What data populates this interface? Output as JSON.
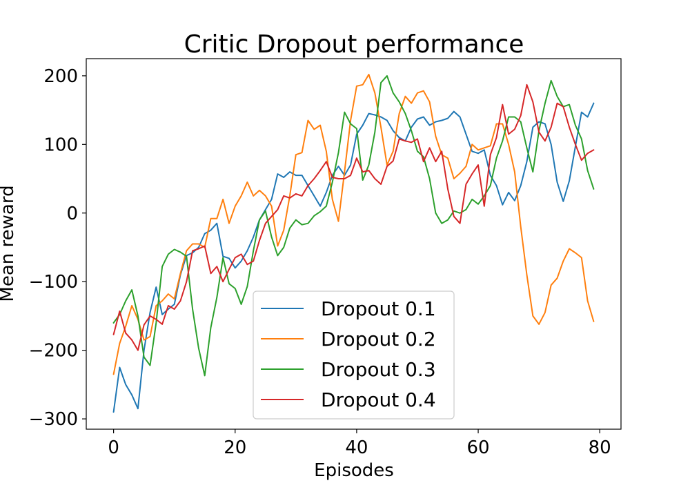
{
  "chart_data": {
    "type": "line",
    "title": "Critic Dropout performance",
    "xlabel": "Episodes",
    "ylabel": "Mean reward",
    "xlim": [
      -4.5,
      83.5
    ],
    "ylim": [
      -315,
      225
    ],
    "xticks": [
      0,
      20,
      40,
      60,
      80
    ],
    "xtick_labels": [
      "0",
      "20",
      "40",
      "60",
      "80"
    ],
    "yticks": [
      -300,
      -200,
      -100,
      0,
      100,
      200
    ],
    "ytick_labels": [
      "−300",
      "−200",
      "−100",
      "0",
      "100",
      "200"
    ],
    "grid": false,
    "legend_position": "bottom-center",
    "series": [
      {
        "name": "Dropout 0.1",
        "color": "#1f77b4",
        "values": [
          -290,
          -225,
          -250,
          -265,
          -285,
          -200,
          -145,
          -108,
          -148,
          -140,
          -133,
          -90,
          -62,
          -58,
          -50,
          -30,
          -25,
          -15,
          -63,
          -66,
          -80,
          -70,
          -55,
          -35,
          -10,
          5,
          20,
          57,
          52,
          60,
          55,
          55,
          40,
          25,
          10,
          30,
          55,
          68,
          55,
          70,
          115,
          128,
          145,
          143,
          140,
          135,
          120,
          110,
          105,
          125,
          137,
          140,
          128,
          133,
          135,
          138,
          148,
          140,
          115,
          90,
          87,
          92,
          55,
          40,
          12,
          30,
          18,
          40,
          75,
          125,
          133,
          130,
          100,
          45,
          17,
          47,
          97,
          147,
          140,
          160
        ]
      },
      {
        "name": "Dropout 0.2",
        "color": "#ff7f0e",
        "values": [
          -235,
          -190,
          -165,
          -135,
          -155,
          -185,
          -180,
          -135,
          -128,
          -118,
          -125,
          -88,
          -55,
          -45,
          -45,
          -50,
          -8,
          -8,
          20,
          -15,
          10,
          25,
          45,
          25,
          33,
          25,
          10,
          -48,
          -25,
          25,
          85,
          88,
          135,
          122,
          128,
          90,
          20,
          -12,
          60,
          135,
          185,
          187,
          202,
          175,
          125,
          70,
          90,
          145,
          170,
          160,
          175,
          178,
          162,
          112,
          85,
          80,
          50,
          58,
          68,
          100,
          92,
          95,
          98,
          130,
          130,
          100,
          60,
          -20,
          -90,
          -150,
          -162,
          -145,
          -105,
          -95,
          -70,
          -52,
          -58,
          -65,
          -128,
          -158
        ]
      },
      {
        "name": "Dropout 0.3",
        "color": "#2ca02c",
        "values": [
          -160,
          -148,
          -128,
          -112,
          -150,
          -210,
          -222,
          -160,
          -78,
          -60,
          -53,
          -57,
          -63,
          -140,
          -197,
          -237,
          -167,
          -123,
          -65,
          -103,
          -110,
          -133,
          -107,
          -55,
          -10,
          3,
          -35,
          -62,
          -50,
          -22,
          -10,
          -17,
          -15,
          -4,
          2,
          10,
          45,
          88,
          147,
          130,
          123,
          48,
          70,
          118,
          190,
          200,
          175,
          162,
          145,
          120,
          90,
          82,
          50,
          0,
          -15,
          -10,
          3,
          0,
          5,
          20,
          13,
          25,
          40,
          80,
          105,
          140,
          140,
          133,
          95,
          60,
          120,
          160,
          193,
          170,
          155,
          158,
          128,
          108,
          62,
          35
        ]
      },
      {
        "name": "Dropout 0.4",
        "color": "#d62728",
        "values": [
          -177,
          -143,
          -175,
          -185,
          -200,
          -163,
          -150,
          -155,
          -162,
          -135,
          -140,
          -128,
          -100,
          -55,
          -52,
          -48,
          -88,
          -78,
          -100,
          -82,
          -65,
          -60,
          -75,
          -70,
          -40,
          -15,
          -5,
          5,
          25,
          22,
          28,
          25,
          40,
          50,
          62,
          75,
          52,
          50,
          50,
          55,
          80,
          60,
          62,
          50,
          42,
          68,
          76,
          108,
          105,
          103,
          108,
          75,
          95,
          75,
          90,
          35,
          -5,
          -15,
          42,
          57,
          70,
          10,
          85,
          110,
          158,
          115,
          122,
          142,
          187,
          162,
          118,
          105,
          125,
          160,
          155,
          125,
          100,
          77,
          87,
          92
        ]
      }
    ]
  }
}
